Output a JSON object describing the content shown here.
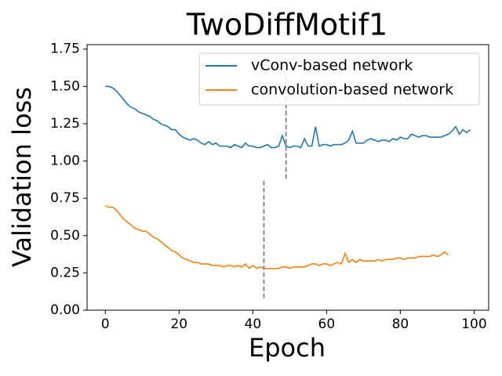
{
  "chart_data": {
    "type": "line",
    "title": "TwoDiffMotif1",
    "xlabel": "Epoch",
    "ylabel": "Validation loss",
    "xlim": [
      -4.95,
      103.95
    ],
    "ylim": [
      0,
      1.78
    ],
    "xticks": [
      0,
      20,
      40,
      60,
      80,
      100
    ],
    "yticks": [
      {
        "value": 0,
        "label": "0.00"
      },
      {
        "value": 0.25,
        "label": "0.25"
      },
      {
        "value": 0.5,
        "label": "0.50"
      },
      {
        "value": 0.75,
        "label": "0.75"
      },
      {
        "value": 1.0,
        "label": "1.00"
      },
      {
        "value": 1.25,
        "label": "1.25"
      },
      {
        "value": 1.5,
        "label": "1.50"
      },
      {
        "value": 1.75,
        "label": "1.75"
      }
    ],
    "legend": "upper right",
    "series": [
      {
        "name": "vConv-based network",
        "color": "#1f77b4",
        "x": [
          0,
          1,
          2,
          3,
          4,
          5,
          6,
          7,
          8,
          9,
          10,
          11,
          12,
          13,
          14,
          15,
          16,
          17,
          18,
          19,
          20,
          21,
          22,
          23,
          24,
          25,
          26,
          27,
          28,
          29,
          30,
          31,
          32,
          33,
          34,
          35,
          36,
          37,
          38,
          39,
          40,
          41,
          42,
          43,
          44,
          45,
          46,
          47,
          48,
          49,
          50,
          51,
          52,
          53,
          54,
          55,
          56,
          57,
          58,
          59,
          60,
          61,
          62,
          63,
          64,
          65,
          66,
          67,
          68,
          69,
          70,
          71,
          72,
          73,
          74,
          75,
          76,
          77,
          78,
          79,
          80,
          81,
          82,
          83,
          84,
          85,
          86,
          87,
          88,
          89,
          90,
          91,
          92,
          93,
          94,
          95,
          96,
          97,
          98,
          99
        ],
        "values": [
          1.5,
          1.5,
          1.49,
          1.47,
          1.44,
          1.41,
          1.38,
          1.36,
          1.35,
          1.33,
          1.32,
          1.31,
          1.3,
          1.28,
          1.27,
          1.25,
          1.24,
          1.23,
          1.21,
          1.21,
          1.18,
          1.16,
          1.15,
          1.14,
          1.15,
          1.14,
          1.12,
          1.11,
          1.13,
          1.11,
          1.12,
          1.1,
          1.1,
          1.1,
          1.09,
          1.11,
          1.1,
          1.09,
          1.12,
          1.1,
          1.1,
          1.09,
          1.09,
          1.1,
          1.11,
          1.09,
          1.09,
          1.1,
          1.17,
          1.1,
          1.09,
          1.1,
          1.1,
          1.09,
          1.15,
          1.1,
          1.1,
          1.23,
          1.1,
          1.11,
          1.11,
          1.1,
          1.11,
          1.11,
          1.11,
          1.12,
          1.14,
          1.2,
          1.12,
          1.12,
          1.12,
          1.14,
          1.15,
          1.14,
          1.13,
          1.14,
          1.14,
          1.13,
          1.15,
          1.14,
          1.16,
          1.15,
          1.15,
          1.18,
          1.17,
          1.16,
          1.17,
          1.17,
          1.16,
          1.16,
          1.16,
          1.16,
          1.17,
          1.18,
          1.2,
          1.23,
          1.18,
          1.21,
          1.19,
          1.21
        ]
      },
      {
        "name": "convolution-based network",
        "color": "#ff7f0e",
        "x": [
          0,
          1,
          2,
          3,
          4,
          5,
          6,
          7,
          8,
          9,
          10,
          11,
          12,
          13,
          14,
          15,
          16,
          17,
          18,
          19,
          20,
          21,
          22,
          23,
          24,
          25,
          26,
          27,
          28,
          29,
          30,
          31,
          32,
          33,
          34,
          35,
          36,
          37,
          38,
          39,
          40,
          41,
          42,
          43,
          44,
          45,
          46,
          47,
          48,
          49,
          50,
          51,
          52,
          53,
          54,
          55,
          56,
          57,
          58,
          59,
          60,
          61,
          62,
          63,
          64,
          65,
          66,
          67,
          68,
          69,
          70,
          71,
          72,
          73,
          74,
          75,
          76,
          77,
          78,
          79,
          80,
          81,
          82,
          83,
          84,
          85,
          86,
          87,
          88,
          89,
          90,
          91,
          92,
          93
        ],
        "values": [
          0.7,
          0.69,
          0.69,
          0.67,
          0.64,
          0.61,
          0.59,
          0.57,
          0.55,
          0.54,
          0.53,
          0.53,
          0.51,
          0.49,
          0.48,
          0.46,
          0.44,
          0.42,
          0.4,
          0.39,
          0.37,
          0.35,
          0.34,
          0.33,
          0.32,
          0.32,
          0.31,
          0.31,
          0.31,
          0.3,
          0.3,
          0.3,
          0.29,
          0.3,
          0.3,
          0.29,
          0.3,
          0.29,
          0.31,
          0.28,
          0.3,
          0.28,
          0.29,
          0.28,
          0.28,
          0.28,
          0.28,
          0.28,
          0.29,
          0.29,
          0.28,
          0.29,
          0.29,
          0.29,
          0.29,
          0.3,
          0.31,
          0.31,
          0.3,
          0.31,
          0.31,
          0.3,
          0.31,
          0.32,
          0.31,
          0.38,
          0.32,
          0.34,
          0.32,
          0.34,
          0.33,
          0.33,
          0.33,
          0.33,
          0.34,
          0.33,
          0.34,
          0.34,
          0.34,
          0.35,
          0.35,
          0.34,
          0.35,
          0.35,
          0.35,
          0.36,
          0.36,
          0.36,
          0.36,
          0.37,
          0.36,
          0.37,
          0.39,
          0.37
        ]
      }
    ],
    "vlines": [
      {
        "x": 49,
        "ymin": 0.88,
        "ymax": 1.57,
        "color": "#808080"
      },
      {
        "x": 43,
        "ymin": 0.08,
        "ymax": 0.88,
        "color": "#808080"
      }
    ]
  }
}
